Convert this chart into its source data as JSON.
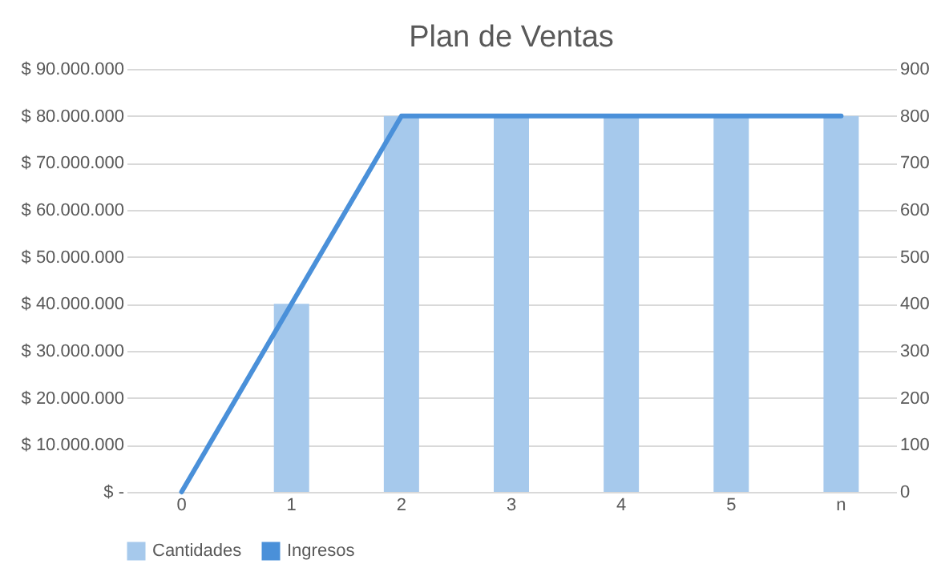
{
  "chart_data": {
    "type": "bar",
    "title": "Plan de Ventas",
    "categories": [
      "0",
      "1",
      "2",
      "3",
      "4",
      "5",
      "n"
    ],
    "series": [
      {
        "name": "Cantidades",
        "axis": "y2",
        "color": "#a6c9ec",
        "values": [
          0,
          400,
          800,
          800,
          800,
          800,
          800
        ]
      },
      {
        "name": "Ingresos",
        "type": "line",
        "axis": "y",
        "color": "#4a90d9",
        "values": [
          0,
          40000000,
          80000000,
          80000000,
          80000000,
          80000000,
          80000000
        ]
      }
    ],
    "ylim": [
      0,
      90000000
    ],
    "yticks": [
      {
        "value": 0,
        "label": "$ -"
      },
      {
        "value": 10000000,
        "label": "$ 10.000.000"
      },
      {
        "value": 20000000,
        "label": "$ 20.000.000"
      },
      {
        "value": 30000000,
        "label": "$ 30.000.000"
      },
      {
        "value": 40000000,
        "label": "$ 40.000.000"
      },
      {
        "value": 50000000,
        "label": "$ 50.000.000"
      },
      {
        "value": 60000000,
        "label": "$ 60.000.000"
      },
      {
        "value": 70000000,
        "label": "$ 70.000.000"
      },
      {
        "value": 80000000,
        "label": "$ 80.000.000"
      },
      {
        "value": 90000000,
        "label": "$ 90.000.000"
      }
    ],
    "y2lim": [
      0,
      900
    ],
    "y2ticks": [
      0,
      100,
      200,
      300,
      400,
      500,
      600,
      700,
      800,
      900
    ],
    "grid": "y",
    "legend": "bottom"
  }
}
